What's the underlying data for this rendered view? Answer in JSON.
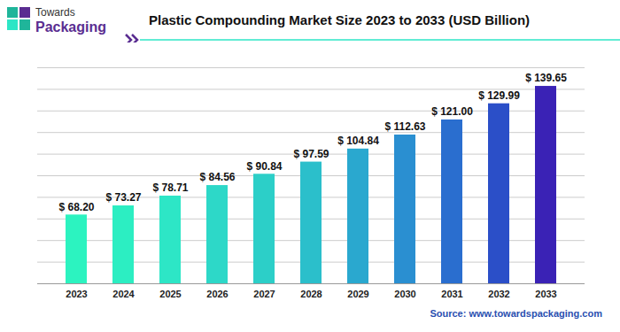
{
  "header": {
    "logo": [
      "Towards",
      "Packaging"
    ]
  },
  "chart_data": {
    "type": "bar",
    "title": "Plastic Compounding Market Size 2023 to 2033 (USD Billion)",
    "categories": [
      "2023",
      "2024",
      "2025",
      "2026",
      "2027",
      "2028",
      "2029",
      "2030",
      "2031",
      "2032",
      "2033"
    ],
    "values": [
      68.2,
      73.27,
      78.71,
      84.56,
      90.84,
      97.59,
      104.84,
      112.63,
      121.0,
      129.99,
      139.65
    ],
    "value_labels": [
      "$ 68.20",
      "$ 73.27",
      "$ 78.71",
      "$ 84.56",
      "$ 90.84",
      "$ 97.59",
      "$ 104.84",
      "$ 112.63",
      "$ 121.00",
      "$ 129.99",
      "$ 139.65"
    ],
    "colors": [
      "#2cf3c0",
      "#2ceec2",
      "#2de6c6",
      "#2dd8c8",
      "#2ccfc8",
      "#2bbfcb",
      "#2aa8cf",
      "#2a8fd1",
      "#2a6ecf",
      "#2b4fc8",
      "#3a22b5"
    ],
    "ylim": [
      30,
      150
    ],
    "yticks": [
      30,
      42,
      54,
      66,
      78,
      90,
      102,
      114,
      126,
      138,
      150
    ],
    "grid": true,
    "data_labels": true,
    "tick_labels": "x",
    "source": "Source: www.towardspackaging.com"
  }
}
